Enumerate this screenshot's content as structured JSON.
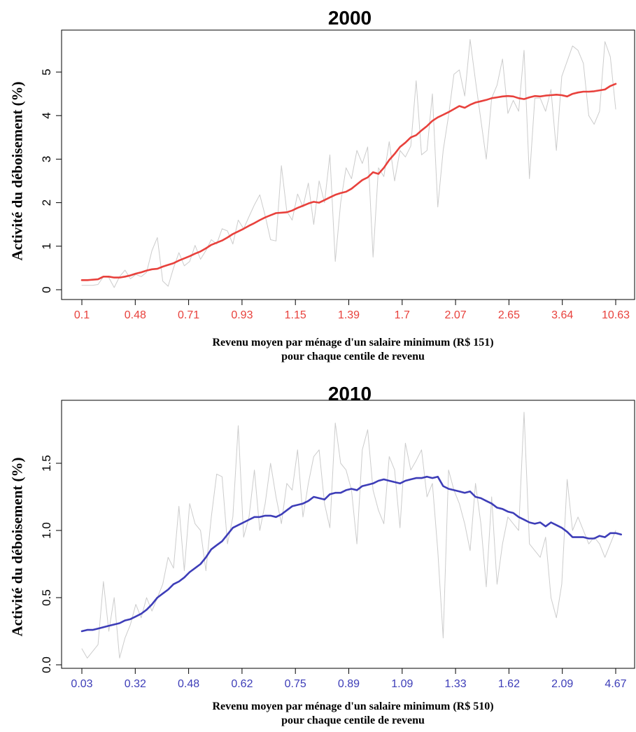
{
  "chart_data": [
    {
      "type": "line",
      "title": "2000",
      "ylabel": "Activité du déboisement (%)",
      "xlabel_line1": "Revenu moyen par ménage d'un salaire minimum (R$ 151)",
      "xlabel_line2": "pour chaque centile de revenu",
      "accent_color": "#e8413c",
      "raw_color": "#cccccc",
      "x_domain": [
        1,
        100
      ],
      "ylim": [
        0,
        5.4
      ],
      "y_ticks": [
        0,
        1,
        2,
        3,
        4,
        5
      ],
      "x_tick_labels": [
        "0.1",
        "0.48",
        "0.71",
        "0.93",
        "1.15",
        "1.39",
        "1.7",
        "2.07",
        "2.65",
        "3.64",
        "10.63"
      ],
      "grid": false,
      "series": [
        {
          "role": "smoothed",
          "values": [
            0.22,
            0.22,
            0.23,
            0.24,
            0.3,
            0.3,
            0.28,
            0.28,
            0.3,
            0.33,
            0.37,
            0.4,
            0.44,
            0.47,
            0.48,
            0.53,
            0.57,
            0.61,
            0.67,
            0.72,
            0.77,
            0.83,
            0.88,
            0.95,
            1.03,
            1.08,
            1.13,
            1.2,
            1.28,
            1.34,
            1.4,
            1.47,
            1.53,
            1.6,
            1.66,
            1.71,
            1.76,
            1.77,
            1.78,
            1.82,
            1.88,
            1.93,
            1.98,
            2.02,
            2.0,
            2.06,
            2.12,
            2.18,
            2.22,
            2.25,
            2.32,
            2.42,
            2.52,
            2.58,
            2.7,
            2.66,
            2.8,
            2.98,
            3.12,
            3.28,
            3.38,
            3.5,
            3.55,
            3.66,
            3.76,
            3.88,
            3.96,
            4.02,
            4.08,
            4.15,
            4.22,
            4.18,
            4.25,
            4.3,
            4.33,
            4.36,
            4.4,
            4.42,
            4.44,
            4.45,
            4.44,
            4.4,
            4.38,
            4.42,
            4.45,
            4.44,
            4.46,
            4.47,
            4.48,
            4.47,
            4.44,
            4.5,
            4.53,
            4.55,
            4.55,
            4.56,
            4.58,
            4.6,
            4.68,
            4.73
          ]
        },
        {
          "role": "raw",
          "values": [
            0.1,
            0.1,
            0.1,
            0.12,
            0.3,
            0.28,
            0.05,
            0.3,
            0.45,
            0.25,
            0.35,
            0.3,
            0.4,
            0.9,
            1.2,
            0.2,
            0.08,
            0.5,
            0.85,
            0.55,
            0.65,
            1.02,
            0.7,
            0.9,
            1.15,
            1.05,
            1.4,
            1.35,
            1.05,
            1.6,
            1.4,
            1.68,
            1.95,
            2.18,
            1.7,
            1.15,
            1.12,
            2.85,
            1.8,
            1.6,
            2.2,
            1.9,
            2.45,
            1.5,
            2.5,
            2.0,
            3.1,
            0.65,
            2.0,
            2.8,
            2.55,
            3.2,
            2.9,
            3.28,
            0.75,
            2.8,
            2.6,
            3.4,
            2.5,
            3.2,
            3.05,
            3.3,
            4.8,
            3.1,
            3.2,
            4.5,
            1.9,
            3.2,
            4.0,
            4.95,
            5.05,
            4.45,
            5.75,
            4.8,
            3.9,
            3.0,
            4.4,
            4.7,
            5.3,
            4.05,
            4.35,
            4.1,
            5.5,
            2.55,
            4.4,
            4.4,
            4.1,
            4.6,
            3.2,
            4.9,
            5.25,
            5.6,
            5.5,
            5.2,
            4.0,
            3.8,
            4.1,
            5.7,
            5.35,
            4.15
          ]
        }
      ]
    },
    {
      "type": "line",
      "title": "2010",
      "ylabel": "Activité du déboisement (%)",
      "xlabel_line1": "Revenu moyen par ménage d'un salaire minimum (R$ 510)",
      "xlabel_line2": "pour chaque centile de revenu",
      "accent_color": "#3d3db8",
      "raw_color": "#cccccc",
      "x_domain": [
        1,
        100
      ],
      "ylim": [
        0,
        1.88
      ],
      "y_ticks": [
        "0.0",
        "0.5",
        "1.0",
        "1.5"
      ],
      "x_tick_labels": [
        "0.03",
        "0.32",
        "0.48",
        "0.62",
        "0.75",
        "0.89",
        "1.09",
        "1.33",
        "1.62",
        "2.09",
        "4.67"
      ],
      "grid": false,
      "series": [
        {
          "role": "smoothed",
          "values": [
            0.25,
            0.26,
            0.26,
            0.27,
            0.28,
            0.29,
            0.3,
            0.31,
            0.33,
            0.34,
            0.36,
            0.38,
            0.41,
            0.45,
            0.5,
            0.53,
            0.56,
            0.6,
            0.62,
            0.65,
            0.69,
            0.72,
            0.75,
            0.8,
            0.86,
            0.89,
            0.92,
            0.97,
            1.02,
            1.04,
            1.06,
            1.08,
            1.1,
            1.1,
            1.11,
            1.11,
            1.1,
            1.12,
            1.15,
            1.18,
            1.19,
            1.2,
            1.22,
            1.25,
            1.24,
            1.23,
            1.27,
            1.28,
            1.28,
            1.3,
            1.31,
            1.3,
            1.33,
            1.34,
            1.35,
            1.37,
            1.38,
            1.37,
            1.36,
            1.35,
            1.37,
            1.38,
            1.39,
            1.39,
            1.4,
            1.39,
            1.4,
            1.33,
            1.31,
            1.3,
            1.29,
            1.28,
            1.29,
            1.25,
            1.24,
            1.22,
            1.2,
            1.17,
            1.16,
            1.14,
            1.13,
            1.1,
            1.08,
            1.06,
            1.05,
            1.06,
            1.03,
            1.06,
            1.04,
            1.02,
            0.99,
            0.95,
            0.95,
            0.95,
            0.94,
            0.94,
            0.96,
            0.95,
            0.98,
            0.98,
            0.97
          ]
        },
        {
          "role": "raw",
          "values": [
            0.12,
            0.05,
            0.1,
            0.15,
            0.62,
            0.25,
            0.5,
            0.05,
            0.2,
            0.3,
            0.45,
            0.35,
            0.5,
            0.4,
            0.5,
            0.6,
            0.8,
            0.72,
            1.18,
            0.7,
            1.2,
            1.05,
            1.0,
            0.7,
            1.1,
            1.42,
            1.4,
            0.9,
            1.1,
            1.78,
            0.95,
            1.1,
            1.45,
            1.0,
            1.2,
            1.5,
            1.25,
            1.05,
            1.35,
            1.3,
            1.6,
            1.1,
            1.35,
            1.55,
            1.6,
            1.2,
            1.02,
            1.8,
            1.5,
            1.45,
            1.3,
            0.9,
            1.6,
            1.75,
            1.3,
            1.15,
            1.05,
            1.55,
            1.45,
            1.02,
            1.65,
            1.45,
            1.52,
            1.6,
            1.25,
            1.35,
            0.85,
            0.2,
            1.45,
            1.3,
            1.2,
            1.05,
            0.85,
            1.35,
            1.05,
            0.58,
            1.25,
            0.6,
            0.9,
            1.1,
            1.05,
            1.0,
            1.88,
            0.9,
            0.85,
            0.8,
            0.95,
            0.5,
            0.35,
            0.6,
            1.38,
            1.0,
            1.1,
            1.0,
            0.9,
            0.95,
            0.9,
            0.8,
            0.9,
            1.0
          ]
        }
      ]
    }
  ]
}
